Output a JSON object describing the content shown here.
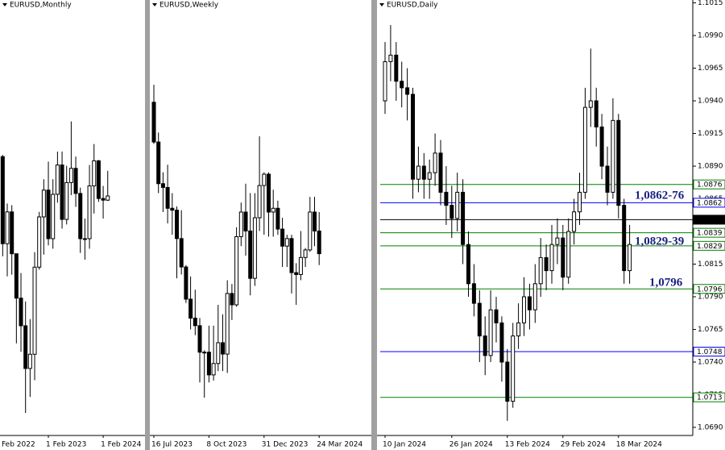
{
  "chart_data": [
    {
      "type": "candlestick",
      "title": "EURUSD,Monthly",
      "categories": [
        "Feb 2022",
        null,
        null,
        null,
        null,
        null,
        null,
        null,
        null,
        null,
        null,
        null,
        "1 Feb 2023",
        null,
        null,
        null,
        null,
        null,
        null,
        null,
        null,
        null,
        null,
        null,
        "1 Feb 2024",
        null
      ],
      "candles": [
        null,
        null,
        [
          1.1065,
          1.1075,
          1.047,
          1.0545
        ],
        [
          1.0545,
          1.0785,
          1.035,
          1.0735
        ],
        [
          1.0735,
          1.0775,
          1.036,
          1.0485
        ],
        [
          1.0485,
          1.0485,
          0.995,
          1.022
        ],
        [
          1.022,
          1.037,
          0.99,
          1.0055
        ],
        [
          1.0055,
          1.02,
          0.9535,
          0.98
        ],
        [
          0.98,
          1.0095,
          0.963,
          0.9885
        ],
        [
          0.9885,
          1.0495,
          0.973,
          1.0405
        ],
        [
          1.0405,
          1.0735,
          1.039,
          1.0705
        ],
        [
          1.0705,
          1.093,
          1.048,
          1.0865
        ],
        [
          1.0865,
          1.1035,
          1.0535,
          1.0575
        ],
        [
          1.0575,
          1.093,
          1.0515,
          1.084
        ],
        [
          1.084,
          1.1095,
          1.079,
          1.1015
        ],
        [
          1.1015,
          1.1095,
          1.0635,
          1.069
        ],
        [
          1.069,
          1.101,
          1.066,
          1.091
        ],
        [
          1.091,
          1.1275,
          1.0835,
          1.0995
        ],
        [
          1.0995,
          1.1065,
          1.0765,
          1.0845
        ],
        [
          1.0845,
          1.088,
          1.049,
          1.0575
        ],
        [
          1.0575,
          1.0695,
          1.045,
          1.0575
        ],
        [
          1.0575,
          1.1015,
          1.0515,
          1.089
        ],
        [
          1.089,
          1.114,
          1.0725,
          1.104
        ],
        [
          1.104,
          1.1045,
          1.0795,
          1.0815
        ],
        [
          1.0815,
          1.089,
          1.0695,
          1.0805
        ],
        [
          1.0805,
          1.098,
          1.08,
          1.083
        ]
      ],
      "ylim": [
        0.94,
        1.2
      ]
    },
    {
      "type": "candlestick",
      "title": "EURUSD,Weekly",
      "categories": [
        "16 Jul 2023",
        null,
        null,
        null,
        null,
        null,
        null,
        null,
        null,
        null,
        null,
        null,
        "8 Oct 2023",
        null,
        null,
        null,
        null,
        null,
        null,
        null,
        null,
        null,
        null,
        null,
        "31 Dec 2023",
        null,
        null,
        null,
        null,
        null,
        null,
        null,
        null,
        null,
        null,
        null,
        "24 Mar 2024"
      ],
      "candles": [
        [
          1.123,
          1.1276,
          1.112,
          1.1125
        ],
        [
          1.1125,
          1.115,
          1.099,
          1.1015
        ],
        [
          1.1015,
          1.1045,
          1.094,
          1.1005
        ],
        [
          1.1005,
          1.1065,
          1.091,
          1.095
        ],
        [
          1.095,
          1.099,
          1.088,
          1.0945
        ],
        [
          1.0945,
          1.0955,
          1.0765,
          1.087
        ],
        [
          1.087,
          1.0945,
          1.0775,
          1.0795
        ],
        [
          1.0795,
          1.08,
          1.07,
          1.071
        ],
        [
          1.071,
          1.077,
          1.063,
          1.066
        ],
        [
          1.066,
          1.0735,
          1.0615,
          1.064
        ],
        [
          1.064,
          1.066,
          1.049,
          1.057
        ],
        [
          1.057,
          1.0575,
          1.045,
          1.057
        ],
        [
          1.057,
          1.064,
          1.049,
          1.051
        ],
        [
          1.051,
          1.064,
          1.0495,
          1.054
        ],
        [
          1.054,
          1.0695,
          1.052,
          1.0595
        ],
        [
          1.0595,
          1.067,
          1.052,
          1.0565
        ],
        [
          1.0565,
          1.076,
          1.0515,
          1.0725
        ],
        [
          1.0725,
          1.075,
          1.0655,
          1.0695
        ],
        [
          1.0695,
          1.09,
          1.069,
          1.0875
        ],
        [
          1.0875,
          1.0965,
          1.085,
          1.094
        ],
        [
          1.094,
          1.1015,
          1.0825,
          1.089
        ],
        [
          1.089,
          1.099,
          1.072,
          1.0765
        ],
        [
          1.0765,
          1.099,
          1.0745,
          1.0925
        ],
        [
          1.0925,
          1.114,
          1.089,
          1.101
        ],
        [
          1.101,
          1.1045,
          1.088,
          1.104
        ],
        [
          1.104,
          1.1045,
          1.0875,
          1.094
        ],
        [
          1.094,
          1.0999,
          1.0875,
          1.095
        ],
        [
          1.095,
          1.097,
          1.088,
          1.0895
        ],
        [
          1.0895,
          1.0925,
          1.0795,
          1.085
        ],
        [
          1.085,
          1.088,
          1.0795,
          1.087
        ],
        [
          1.087,
          1.088,
          1.0725,
          1.078
        ],
        [
          1.078,
          1.0805,
          1.0695,
          1.0775
        ],
        [
          1.0775,
          1.089,
          1.076,
          1.082
        ],
        [
          1.082,
          1.0845,
          1.0795,
          1.084
        ],
        [
          1.084,
          1.098,
          1.0835,
          1.094
        ],
        [
          1.094,
          1.098,
          1.085,
          1.089
        ],
        [
          1.089,
          1.094,
          1.08,
          1.083
        ]
      ],
      "ylim": [
        1.035,
        1.15
      ]
    },
    {
      "type": "candlestick",
      "title": "EURUSD,Daily",
      "categories": [
        "10 Jan 2024",
        null,
        null,
        null,
        null,
        null,
        null,
        null,
        null,
        null,
        null,
        null,
        "26 Jan 2024",
        null,
        null,
        null,
        null,
        null,
        null,
        null,
        null,
        null,
        "13 Feb 2024",
        null,
        null,
        null,
        null,
        null,
        null,
        null,
        null,
        null,
        "29 Feb 2024",
        null,
        null,
        null,
        null,
        null,
        null,
        null,
        null,
        null,
        "18 Mar 2024",
        null,
        null
      ],
      "candles": [
        [
          1.094,
          1.0985,
          1.093,
          1.097
        ],
        [
          1.097,
          1.0998,
          1.0955,
          1.0975
        ],
        [
          1.0975,
          1.0985,
          1.094,
          1.0955
        ],
        [
          1.0955,
          1.097,
          1.0935,
          1.095
        ],
        [
          1.095,
          1.0965,
          1.0925,
          1.0945
        ],
        [
          1.0945,
          1.095,
          1.0865,
          1.088
        ],
        [
          1.088,
          1.0905,
          1.087,
          1.089
        ],
        [
          1.089,
          1.09,
          1.0865,
          1.088
        ],
        [
          1.088,
          1.0895,
          1.0865,
          1.0885
        ],
        [
          1.0885,
          1.0915,
          1.0875,
          1.09
        ],
        [
          1.09,
          1.091,
          1.086,
          1.087
        ],
        [
          1.087,
          1.089,
          1.0845,
          1.086
        ],
        [
          1.086,
          1.0875,
          1.0835,
          1.085
        ],
        [
          1.085,
          1.0885,
          1.084,
          1.087
        ],
        [
          1.087,
          1.088,
          1.0815,
          1.083
        ],
        [
          1.083,
          1.084,
          1.079,
          1.08
        ],
        [
          1.08,
          1.0815,
          1.0775,
          1.0785
        ],
        [
          1.0785,
          1.0795,
          1.074,
          1.076
        ],
        [
          1.076,
          1.0775,
          1.073,
          1.0745
        ],
        [
          1.0745,
          1.0795,
          1.074,
          1.078
        ],
        [
          1.078,
          1.079,
          1.0755,
          1.077
        ],
        [
          1.077,
          1.0775,
          1.0725,
          1.074
        ],
        [
          1.074,
          1.075,
          1.0695,
          1.071
        ],
        [
          1.071,
          1.077,
          1.0705,
          1.076
        ],
        [
          1.076,
          1.0785,
          1.075,
          1.077
        ],
        [
          1.077,
          1.0805,
          1.076,
          1.079
        ],
        [
          1.079,
          1.08,
          1.0765,
          1.078
        ],
        [
          1.078,
          1.0815,
          1.077,
          1.08
        ],
        [
          1.08,
          1.0835,
          1.079,
          1.082
        ],
        [
          1.082,
          1.083,
          1.0795,
          1.081
        ],
        [
          1.081,
          1.0845,
          1.08,
          1.083
        ],
        [
          1.083,
          1.085,
          1.0815,
          1.0835
        ],
        [
          1.0835,
          1.0845,
          1.0795,
          1.0805
        ],
        [
          1.0805,
          1.085,
          1.08,
          1.084
        ],
        [
          1.084,
          1.0865,
          1.083,
          1.0855
        ],
        [
          1.0855,
          1.0885,
          1.0845,
          1.087
        ],
        [
          1.087,
          1.095,
          1.0865,
          1.0935
        ],
        [
          1.0935,
          1.098,
          1.092,
          1.094
        ],
        [
          1.094,
          1.095,
          1.0905,
          1.092
        ],
        [
          1.092,
          1.093,
          1.088,
          1.089
        ],
        [
          1.089,
          1.0905,
          1.086,
          1.087
        ],
        [
          1.087,
          1.0942,
          1.0865,
          1.0925
        ],
        [
          1.0925,
          1.093,
          1.085,
          1.086
        ],
        [
          1.086,
          1.0865,
          1.08,
          1.081
        ],
        [
          1.081,
          1.0845,
          1.08,
          1.083
        ]
      ],
      "ylim": [
        1.06838,
        1.10172
      ],
      "yticks": [
        1.1015,
        {
          "value": 1.099,
          "label": "1.0990"
        },
        1.0965,
        {
          "value": 1.094,
          "label": "1.0940"
        },
        1.0915,
        {
          "value": 1.089,
          "label": "1.0890"
        },
        1.0865,
        1.0815,
        {
          "value": 1.079,
          "label": "1.0790"
        },
        1.0765,
        {
          "value": 1.074,
          "label": "1.0740"
        },
        1.0715,
        {
          "value": 1.069,
          "label": "1.0690"
        }
      ],
      "levels": [
        {
          "value": 1.0876,
          "color": "#008000"
        },
        {
          "value": 1.0862,
          "color": "#0000ff"
        },
        {
          "value": 1.0849,
          "color": "#000000"
        },
        {
          "value": 1.0839,
          "color": "#008000"
        },
        {
          "value": 1.0829,
          "color": "#008000"
        },
        {
          "value": 1.0796,
          "color": "#008000"
        },
        {
          "value": 1.0748,
          "color": "#0000ff"
        },
        {
          "value": 1.0713,
          "color": "#008000"
        }
      ],
      "annotations": [
        "1,0862-76",
        "1,0829-39",
        "1,0796"
      ]
    }
  ]
}
